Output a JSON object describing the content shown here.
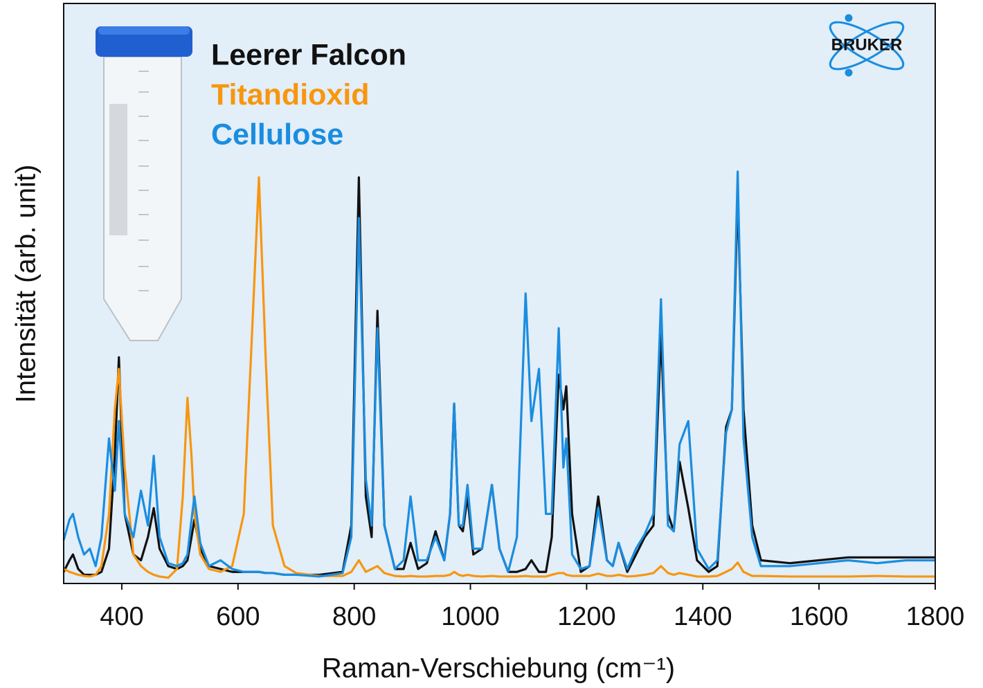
{
  "chart_data": {
    "type": "line",
    "xlabel": "Raman-Verschiebung (cm⁻¹)",
    "ylabel": "Intensität (arb. unit)",
    "logo": "BRUKER",
    "xlim": [
      300,
      1800
    ],
    "xticks": [
      400,
      600,
      800,
      1000,
      1200,
      1400,
      1600,
      1800
    ],
    "ylim": [
      0,
      100
    ],
    "grid": false,
    "legend": "upper left",
    "x": [
      300,
      310,
      316,
      325,
      335,
      345,
      355,
      365,
      378,
      388,
      395,
      405,
      420,
      433,
      445,
      455,
      465,
      480,
      495,
      505,
      513,
      520,
      525,
      535,
      550,
      570,
      590,
      610,
      625,
      636,
      648,
      660,
      680,
      700,
      740,
      780,
      795,
      808,
      820,
      830,
      840,
      852,
      870,
      885,
      897,
      910,
      925,
      940,
      955,
      965,
      972,
      980,
      987,
      995,
      1005,
      1020,
      1037,
      1050,
      1065,
      1080,
      1095,
      1105,
      1118,
      1130,
      1140,
      1152,
      1160,
      1165,
      1175,
      1190,
      1205,
      1220,
      1235,
      1245,
      1255,
      1270,
      1285,
      1300,
      1315,
      1328,
      1340,
      1350,
      1360,
      1375,
      1390,
      1410,
      1425,
      1440,
      1450,
      1460,
      1470,
      1485,
      1500,
      1550,
      1600,
      1650,
      1700,
      1750,
      1800
    ],
    "series": [
      {
        "name": "Leerer Falcon",
        "color": "#111111",
        "values": [
          2,
          4,
          5,
          2.5,
          1.5,
          1.5,
          1.5,
          2,
          6,
          22,
          39,
          12,
          5,
          4,
          8,
          13,
          6,
          3,
          2.5,
          3,
          4,
          8,
          11,
          6,
          3,
          2.5,
          2,
          2,
          2,
          2,
          1.8,
          1.8,
          1.5,
          1.5,
          1.5,
          2,
          10,
          70,
          15,
          8,
          47,
          10,
          2.5,
          2.5,
          7,
          2.5,
          3.5,
          9,
          4,
          12,
          31,
          10,
          9,
          15,
          5,
          6,
          17,
          6,
          2,
          2,
          2.5,
          4,
          2,
          2,
          8,
          36,
          30,
          34,
          12,
          2,
          3,
          15,
          4,
          3,
          7,
          2,
          5,
          8,
          10,
          43,
          12,
          9,
          21,
          13,
          4,
          2,
          3,
          27,
          30,
          67,
          30,
          10,
          4,
          3.5,
          4,
          4.5,
          4.5,
          4.5,
          4.5
        ]
      },
      {
        "name": "Titandioxid",
        "color": "#f7960f",
        "values": [
          2.5,
          2,
          1.8,
          1.5,
          1.3,
          1.2,
          1.5,
          3,
          12,
          30,
          37,
          20,
          5,
          3,
          2,
          1.5,
          1.2,
          1,
          2.5,
          15,
          32,
          22,
          12,
          5,
          2.5,
          2,
          3,
          12,
          45,
          70,
          38,
          10,
          3,
          1.8,
          1.3,
          1.3,
          2,
          4,
          2,
          2.5,
          3,
          1.8,
          1.3,
          1.2,
          1.3,
          1.2,
          1.2,
          1.3,
          1.3,
          1.5,
          2,
          1.5,
          1.3,
          1.5,
          1.3,
          1.2,
          1.3,
          1.2,
          1.2,
          1.2,
          1.3,
          1.2,
          1.2,
          1.2,
          1.5,
          1.8,
          1.8,
          1.5,
          1.3,
          1.3,
          1.3,
          1.7,
          1.3,
          1.3,
          1.5,
          1.2,
          1.3,
          1.5,
          1.8,
          3,
          1.8,
          1.5,
          1.8,
          1.5,
          1.2,
          1.2,
          1.3,
          2,
          2.5,
          3.6,
          2,
          1.3,
          1.3,
          1.2,
          1.2,
          1.2,
          1.3,
          1.2,
          1.2
        ]
      },
      {
        "name": "Cellulose",
        "color": "#1a8de0",
        "values": [
          7.5,
          11,
          12,
          8,
          5,
          6,
          3,
          8,
          25,
          16,
          28,
          12,
          8,
          16,
          10,
          22,
          8,
          3.5,
          3,
          3.5,
          5,
          11,
          15,
          7,
          3,
          4,
          2.5,
          2,
          2,
          2,
          1.8,
          1.8,
          1.5,
          1.5,
          1.2,
          1.8,
          8,
          63,
          18,
          10,
          44,
          10,
          2.5,
          4,
          15,
          4,
          4,
          8,
          4,
          12,
          31,
          10,
          10,
          17,
          6,
          6,
          17,
          6,
          2,
          8,
          50,
          28,
          37,
          12,
          12,
          44,
          20,
          25,
          5,
          2.5,
          3,
          13,
          4,
          3,
          7,
          2.5,
          6,
          8.5,
          12,
          49,
          10,
          9,
          24,
          28,
          6,
          2.5,
          4,
          26,
          30,
          71,
          25,
          8,
          3,
          3,
          3.5,
          4,
          3.5,
          4,
          4
        ]
      }
    ]
  }
}
